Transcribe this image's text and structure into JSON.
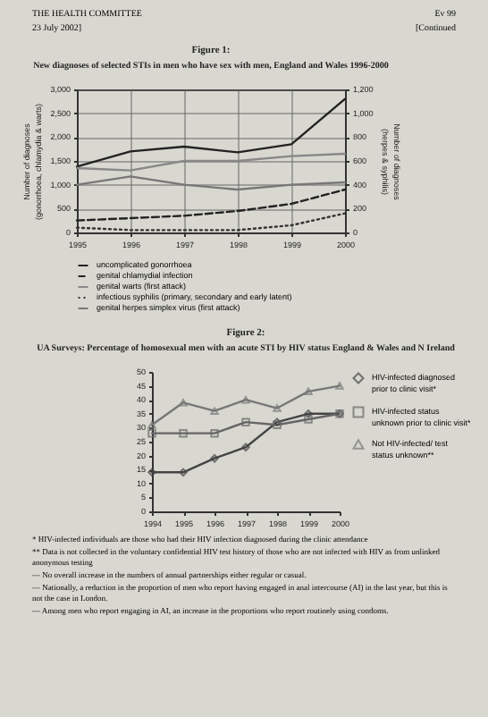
{
  "chart_data": [
    {
      "type": "line",
      "title": "Figure 1:",
      "subtitle": "New diagnoses of selected STIs in men who have sex with men, England and Wales 1996-2000",
      "ylabel": "Number of diagnoses (gonorrhoea, chlamydia & warts)",
      "y2label": "Number of diagnoses (herpes & syphilis)",
      "x": [
        1995,
        1996,
        1997,
        1998,
        1999,
        2000
      ],
      "xlim": [
        1995,
        2000
      ],
      "xticks": [
        1995,
        1996,
        1997,
        1998,
        1999,
        2000
      ],
      "ylim": [
        0,
        3000
      ],
      "yticks": [
        0,
        500,
        {
          "value": 1000,
          "label": "1,000"
        },
        {
          "value": 1500,
          "label": "1,500"
        },
        {
          "value": 2000,
          "label": "2,000"
        },
        {
          "value": 2500,
          "label": "2,500"
        },
        {
          "value": 3000,
          "label": "3,000"
        }
      ],
      "y2lim": [
        0,
        1200
      ],
      "y2ticks": [
        0,
        200,
        400,
        600,
        800,
        {
          "value": 1000,
          "label": "1,000"
        },
        {
          "value": 1200,
          "label": "1,200"
        }
      ],
      "grid": true,
      "legend": "bottom",
      "annotations": [
        "THE HEALTH COMMITTEE",
        "Ev 99",
        "23 July 2002]",
        "[Continued"
      ],
      "series": [
        {
          "name": "uncomplicated gonorrhoea",
          "color": "#222222",
          "line_style": "solid",
          "values": [
            1380,
            1700,
            1800,
            1680,
            1850,
            2800
          ]
        },
        {
          "name": "genital chlamydial infection",
          "color": "#222222",
          "line_style": "dashed",
          "values": [
            250,
            300,
            350,
            450,
            600,
            900
          ]
        },
        {
          "name": "genital warts (first attack)",
          "color": "#888888",
          "line_style": "solid",
          "values": [
            1350,
            1300,
            1500,
            1500,
            1600,
            1650
          ]
        },
        {
          "name": "infectious syphilis (primary, secondary and early latent)",
          "color": "#333333",
          "line_style": "dotted",
          "axis": "y2",
          "values": [
            40,
            20,
            20,
            20,
            60,
            160
          ]
        },
        {
          "name": "genital herpes simplex virus (first attack)",
          "color": "#777777",
          "line_style": "solid",
          "axis": "y2",
          "values": [
            400,
            470,
            400,
            360,
            400,
            420
          ]
        }
      ]
    },
    {
      "type": "line",
      "title": "Figure 2:",
      "subtitle": "UA Surveys: Percentage of homosexual men with an acute STI by HIV status England & Wales and N Ireland",
      "x": [
        1994,
        1995,
        1996,
        1997,
        1998,
        1999,
        2000
      ],
      "xlim": [
        1994,
        2000
      ],
      "xticks": [
        1994,
        1995,
        1996,
        1997,
        1998,
        1999,
        2000
      ],
      "ylim": [
        0,
        50
      ],
      "yticks": [
        0,
        5,
        10,
        15,
        20,
        25,
        30,
        35,
        40,
        45,
        50
      ],
      "legend": "right",
      "annotations": [
        "* HIV-infected individuals are those who had their HIV infection diagnosed during the clinic attendance",
        "** Data is not collected in the voluntary confidential HIV test history of those who are not infected with HIV as from unlinked anonymous testing",
        "— No overall increase in the numbers of annual partnerships either regular or casual.",
        "— Nationally, a reduction in the proportion of men who report having engaged in anal intercourse (AI) in the last year, but this is not the case in London.",
        "— Among men who report engaging in AI, an increase in the proportions who report routinely using condoms."
      ],
      "series": [
        {
          "name": "HIV-infected diagnosed prior to clinic visit*",
          "color": "#444444",
          "marker": "diamond",
          "values": [
            14,
            14,
            19,
            23,
            32,
            35,
            35
          ]
        },
        {
          "name": "HIV-infected status unknown prior to clinic visit*",
          "color": "#666666",
          "marker": "square",
          "values": [
            28,
            28,
            28,
            32,
            31,
            33,
            35
          ]
        },
        {
          "name": "Not HIV-infected/ test status unknown**",
          "color": "#777777",
          "marker": "triangle",
          "values": [
            31,
            39,
            36,
            40,
            37,
            43,
            45
          ]
        }
      ]
    }
  ]
}
